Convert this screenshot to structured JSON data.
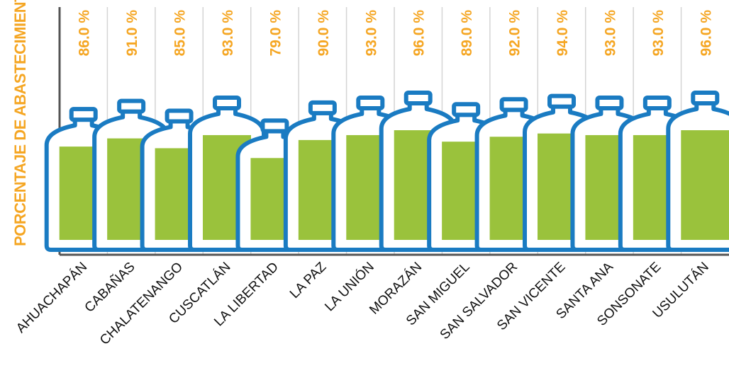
{
  "chart_data": {
    "type": "bar",
    "ylabel": "PORCENTAJE DE ABASTECIMIENTO",
    "categories": [
      "AHUACHAPÁN",
      "CABAÑAS",
      "CHALATENANGO",
      "CUSCATLÁN",
      "LA LIBERTAD",
      "LA PAZ",
      "LA UNIÓN",
      "MORAZÁN",
      "SAN MIGUEL",
      "SAN SALVADOR",
      "SAN VICENTE",
      "SANTA ANA",
      "SONSONATE",
      "USULUTÁN"
    ],
    "values": [
      86.0,
      91.0,
      85.0,
      93.0,
      79.0,
      90.0,
      93.0,
      96.0,
      89.0,
      92.0,
      94.0,
      93.0,
      93.0,
      96.0
    ],
    "value_labels": [
      "86.0 %",
      "91.0 %",
      "85.0 %",
      "93.0 %",
      "79.0 %",
      "90.0 %",
      "93.0 %",
      "96.0 %",
      "89.0 %",
      "92.0 %",
      "94.0 %",
      "93.0 %",
      "93.0 %",
      "96.0 %"
    ],
    "bar_style": "bottle",
    "grid": "vertical separators",
    "colors": {
      "bottle_outline": "#1a7bc2",
      "fill": "#9ac23c",
      "label": "#f5a623",
      "axis": "#555555",
      "separator": "#d4d4d4"
    }
  }
}
